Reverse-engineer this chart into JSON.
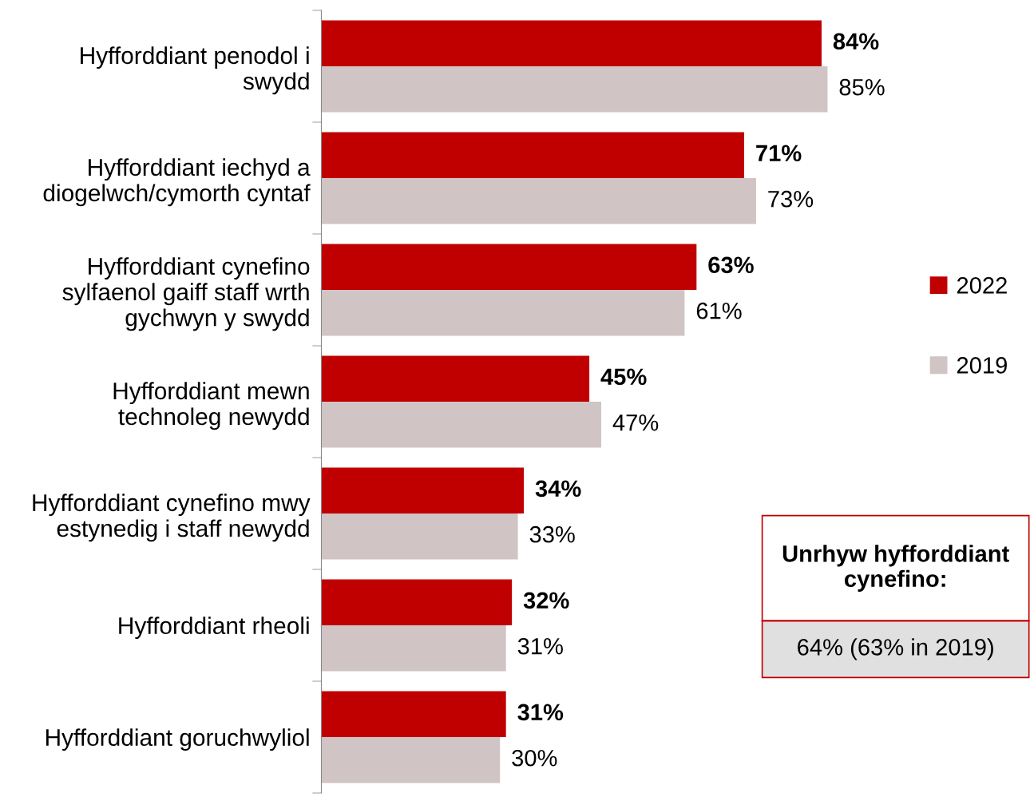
{
  "chart_data": {
    "type": "bar",
    "orientation": "horizontal",
    "data_labels": true,
    "legend": "right",
    "grid": false,
    "categories": [
      "Hyfforddiant penodol i swydd",
      "Hyfforddiant iechyd a diogelwch/cymorth cyntaf",
      "Hyfforddiant cynefino sylfaenol gaiff staff wrth gychwyn y swydd",
      "Hyfforddiant mewn technoleg newydd",
      "Hyfforddiant cynefino mwy estynedig i staff newydd",
      "Hyfforddiant rheoli",
      "Hyfforddiant goruchwyliol"
    ],
    "series": [
      {
        "name": "2022",
        "color": "#c00000",
        "values": [
          84,
          71,
          63,
          45,
          34,
          32,
          31
        ],
        "value_labels": [
          "84%",
          "71%",
          "63%",
          "45%",
          "34%",
          "32%",
          "31%"
        ]
      },
      {
        "name": "2019",
        "color": "#d0c4c4",
        "values": [
          85,
          73,
          61,
          47,
          33,
          31,
          30
        ],
        "value_labels": [
          "85%",
          "73%",
          "61%",
          "47%",
          "33%",
          "31%",
          "30%"
        ]
      }
    ],
    "annotations": [
      "Unrhyw hyfforddiant cynefino:",
      "64% (63% in 2019)"
    ]
  }
}
